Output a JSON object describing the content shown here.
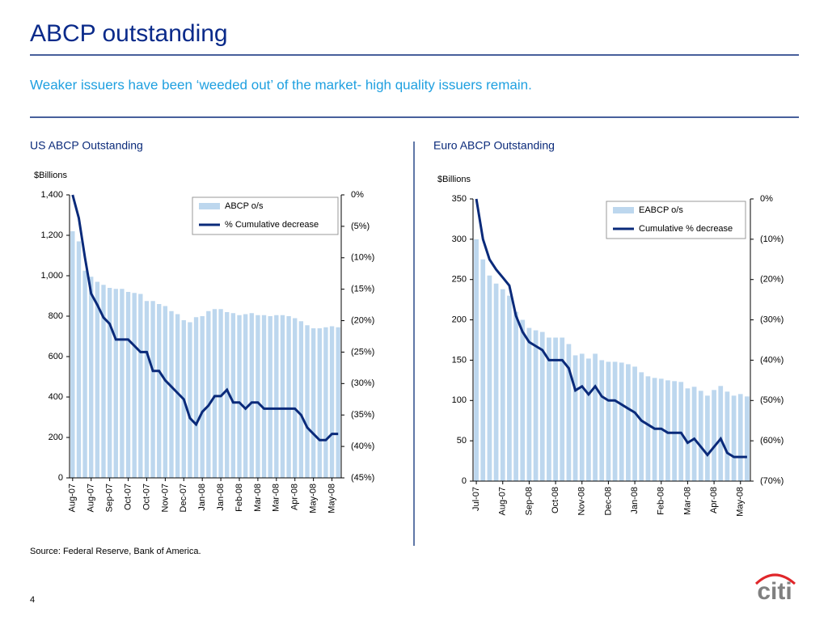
{
  "title": "ABCP outstanding",
  "subtitle": "Weaker issuers have been ‘weeded out’ of the market- high quality issuers remain.",
  "source": "Source:  Federal Reserve, Bank of America.",
  "page": "4",
  "logo": "citi",
  "chart_data": [
    {
      "type": "bar",
      "title": "US ABCP Outstanding",
      "y_label": "$Billions",
      "categories": [
        "Aug-07",
        null,
        null,
        "Aug-07",
        null,
        null,
        "Sep-07",
        null,
        null,
        "Oct-07",
        null,
        null,
        "Oct-07",
        null,
        null,
        "Nov-07",
        null,
        null,
        "Dec-07",
        null,
        null,
        "Jan-08",
        null,
        null,
        "Jan-08",
        null,
        null,
        "Feb-08",
        null,
        null,
        "Mar-08",
        null,
        null,
        "Mar-08",
        null,
        null,
        "Apr-08",
        null,
        null,
        "May-08",
        null,
        null,
        "May-08",
        null
      ],
      "series": [
        {
          "name": "ABCP o/s",
          "type": "bar",
          "color": "#bdd7ee",
          "values": [
            1220,
            1170,
            1025,
            995,
            970,
            955,
            940,
            935,
            935,
            920,
            915,
            910,
            875,
            875,
            860,
            850,
            825,
            810,
            780,
            770,
            795,
            800,
            825,
            835,
            835,
            820,
            815,
            805,
            810,
            815,
            805,
            805,
            800,
            805,
            805,
            800,
            790,
            775,
            755,
            740,
            740,
            745,
            750,
            745
          ]
        },
        {
          "name": "% Cumulative decrease",
          "type": "line",
          "axis": "y2",
          "color": "#0a2a7a",
          "values": [
            0,
            -3.7,
            -10,
            -15.7,
            -17.5,
            -19.5,
            -20.5,
            -23,
            -23,
            -23,
            -24,
            -25,
            -25,
            -28,
            -28,
            -29.5,
            -30.5,
            -31.5,
            -32.5,
            -35.5,
            -36.5,
            -34.5,
            -33.5,
            -32,
            -32,
            -31,
            -33,
            -33,
            -34,
            -33,
            -33,
            -34,
            -34,
            -34,
            -34,
            -34,
            -34,
            -35,
            -37,
            -38,
            -39,
            -39,
            -38,
            -38
          ]
        }
      ],
      "ylim": [
        0,
        1400
      ],
      "yticks": [
        0,
        200,
        400,
        600,
        800,
        {
          "value": 1000,
          "label": "1,000"
        },
        {
          "value": 1200,
          "label": "1,200"
        },
        {
          "value": 1400,
          "label": "1,400"
        }
      ],
      "y2lim": [
        -45,
        0
      ],
      "y2ticks": [
        {
          "value": 0,
          "label": "0%"
        },
        {
          "value": -5,
          "label": "(5%)"
        },
        {
          "value": -10,
          "label": "(10%)"
        },
        {
          "value": -15,
          "label": "(15%)"
        },
        {
          "value": -20,
          "label": "(20%)"
        },
        {
          "value": -25,
          "label": "(25%)"
        },
        {
          "value": -30,
          "label": "(30%)"
        },
        {
          "value": -35,
          "label": "(35%)"
        },
        {
          "value": -40,
          "label": "(40%)"
        },
        {
          "value": -45,
          "label": "(45%)"
        }
      ],
      "legend": "upper right"
    },
    {
      "type": "bar",
      "title": "Euro ABCP Outstanding",
      "y_label": "$Billions",
      "categories": [
        "Jul-07",
        null,
        null,
        null,
        "Aug-07",
        null,
        null,
        null,
        "Sep-08",
        null,
        null,
        null,
        "Oct-08",
        null,
        null,
        null,
        "Nov-08",
        null,
        null,
        null,
        "Dec-08",
        null,
        null,
        null,
        "Jan-08",
        null,
        null,
        null,
        "Feb-08",
        null,
        null,
        null,
        "Mar-08",
        null,
        null,
        null,
        "Apr-08",
        null,
        null,
        null,
        "May-08",
        null
      ],
      "series": [
        {
          "name": "EABCP o/s",
          "type": "bar",
          "color": "#bdd7ee",
          "values": [
            300,
            275,
            255,
            245,
            238,
            230,
            210,
            200,
            190,
            187,
            185,
            178,
            178,
            178,
            170,
            156,
            158,
            152,
            158,
            150,
            148,
            148,
            147,
            145,
            142,
            135,
            130,
            128,
            127,
            125,
            124,
            123,
            115,
            117,
            112,
            106,
            113,
            118,
            111,
            106,
            108,
            105
          ]
        },
        {
          "name": "Cumulative % decrease",
          "type": "line",
          "axis": "y2",
          "color": "#0a2a7a",
          "values": [
            0,
            -10,
            -15,
            -17.5,
            -19.5,
            -21.5,
            -29,
            -33,
            -35.5,
            -36.5,
            -37.5,
            -40,
            -40,
            -40,
            -42,
            -47.5,
            -46.5,
            -48.5,
            -46.5,
            -49,
            -50,
            -50,
            -51,
            -52,
            -53,
            -55,
            -56,
            -57,
            -57,
            -58,
            -58,
            -58,
            -60.5,
            -59.5,
            -61.5,
            -63.5,
            -61.5,
            -59.5,
            -63,
            -64,
            -64,
            -64
          ]
        }
      ],
      "ylim": [
        0,
        350
      ],
      "yticks": [
        0,
        50,
        100,
        150,
        200,
        250,
        300,
        350
      ],
      "y2lim": [
        -70,
        0
      ],
      "y2ticks": [
        {
          "value": 0,
          "label": "0%"
        },
        {
          "value": -10,
          "label": "(10%)"
        },
        {
          "value": -20,
          "label": "(20%)"
        },
        {
          "value": -30,
          "label": "(30%)"
        },
        {
          "value": -40,
          "label": "(40%)"
        },
        {
          "value": -50,
          "label": "(50%)"
        },
        {
          "value": -60,
          "label": "(60%)"
        },
        {
          "value": -70,
          "label": "(70%)"
        }
      ],
      "legend": "upper right"
    }
  ]
}
